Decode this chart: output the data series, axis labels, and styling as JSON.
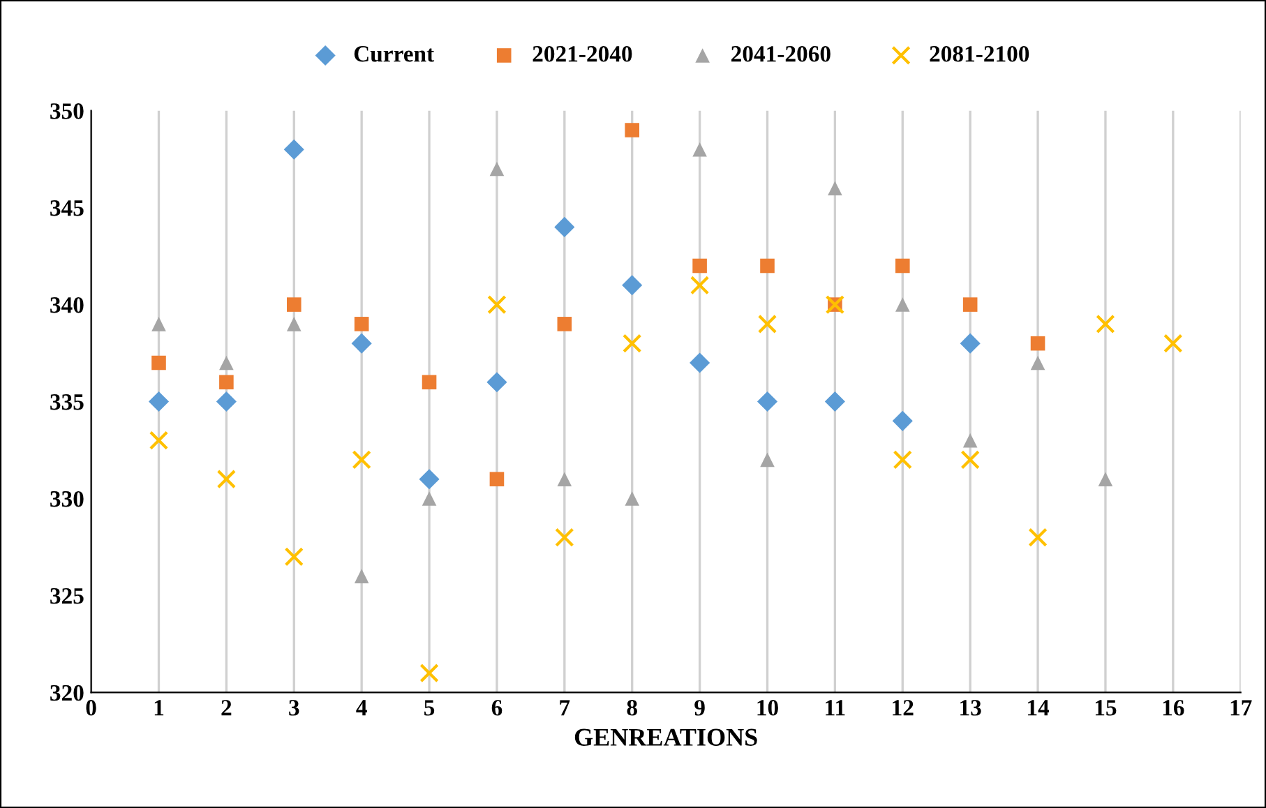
{
  "chart_data": {
    "type": "scatter",
    "xlabel": "GENREATIONS",
    "xlim": [
      0,
      17
    ],
    "xticks": [
      0,
      1,
      2,
      3,
      4,
      5,
      6,
      7,
      8,
      9,
      10,
      11,
      12,
      13,
      14,
      15,
      16,
      17
    ],
    "ylim": [
      320,
      350
    ],
    "yticks": [
      320,
      325,
      330,
      335,
      340,
      345,
      350
    ],
    "grid": "x",
    "legend": "top",
    "series": [
      {
        "name": "Current",
        "color": "#5b9bd5",
        "marker": "diamond",
        "x": [
          1,
          2,
          3,
          4,
          5,
          6,
          7,
          8,
          9,
          10,
          11,
          12,
          13
        ],
        "values": [
          335,
          335,
          348,
          338,
          331,
          336,
          344,
          341,
          337,
          335,
          335,
          334,
          338
        ]
      },
      {
        "name": "2021-2040",
        "color": "#ed7d31",
        "marker": "square",
        "x": [
          1,
          2,
          3,
          4,
          5,
          6,
          7,
          8,
          9,
          10,
          11,
          12,
          13,
          14
        ],
        "values": [
          337,
          336,
          340,
          339,
          336,
          331,
          339,
          349,
          342,
          342,
          340,
          342,
          340,
          338
        ]
      },
      {
        "name": "2041-2060",
        "color": "#a5a5a5",
        "marker": "triangle",
        "x": [
          1,
          2,
          3,
          4,
          5,
          6,
          7,
          8,
          9,
          10,
          11,
          12,
          13,
          14,
          15
        ],
        "values": [
          339,
          337,
          339,
          326,
          330,
          347,
          331,
          330,
          348,
          332,
          346,
          340,
          333,
          337,
          331
        ]
      },
      {
        "name": "2081-2100",
        "color": "#ffc000",
        "marker": "cross",
        "x": [
          1,
          2,
          3,
          4,
          5,
          6,
          7,
          8,
          9,
          10,
          11,
          12,
          13,
          14,
          15,
          16
        ],
        "values": [
          333,
          331,
          327,
          332,
          321,
          340,
          328,
          338,
          341,
          339,
          340,
          332,
          332,
          328,
          339,
          338
        ]
      }
    ]
  }
}
